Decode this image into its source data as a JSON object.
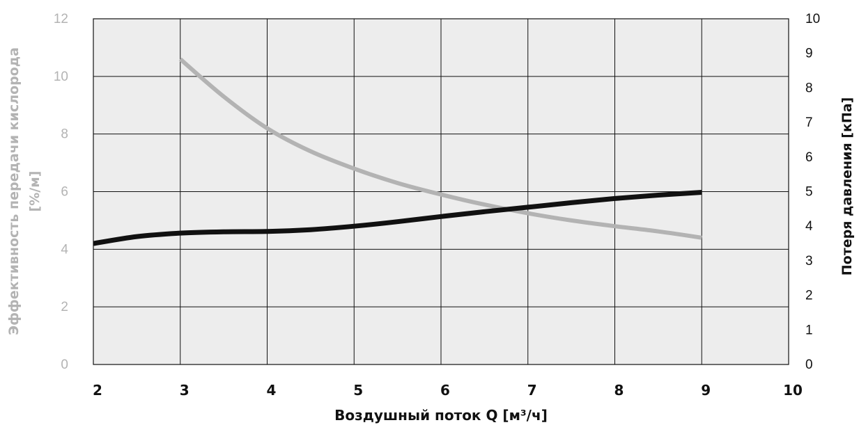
{
  "chart_data": {
    "type": "line",
    "xlabel": "Воздушный поток Q [м³/ч]",
    "ylabel": [
      "Эффективность передачи кислорода",
      "[%/м]"
    ],
    "y2label": "Потеря давления [кПа]",
    "xlim": [
      2,
      10
    ],
    "ylim": [
      0,
      12
    ],
    "y2lim": [
      0,
      10
    ],
    "x_ticks": [
      2,
      3,
      4,
      5,
      6,
      7,
      8,
      9,
      10
    ],
    "y_ticks": [
      0,
      2,
      4,
      6,
      8,
      10,
      12
    ],
    "y2_ticks": [
      0,
      1,
      2,
      3,
      4,
      5,
      6,
      7,
      8,
      9,
      10
    ],
    "grid": true,
    "series": [
      {
        "axis": "left",
        "color": "#b3b3b3",
        "x": [
          3,
          3.5,
          4,
          4.5,
          5,
          5.5,
          6,
          6.5,
          7,
          7.5,
          8,
          8.5,
          9
        ],
        "y": [
          10.6,
          9.3,
          8.2,
          7.4,
          6.8,
          6.3,
          5.9,
          5.55,
          5.25,
          5.0,
          4.8,
          4.62,
          4.4
        ]
      },
      {
        "axis": "right",
        "color": "#111111",
        "x": [
          2,
          2.5,
          3,
          3.5,
          4,
          4.5,
          5,
          5.5,
          6,
          6.5,
          7,
          7.5,
          8,
          8.5,
          9
        ],
        "y": [
          3.5,
          3.7,
          3.8,
          3.84,
          3.85,
          3.9,
          4.0,
          4.13,
          4.28,
          4.42,
          4.55,
          4.68,
          4.8,
          4.9,
          4.98
        ]
      }
    ]
  }
}
